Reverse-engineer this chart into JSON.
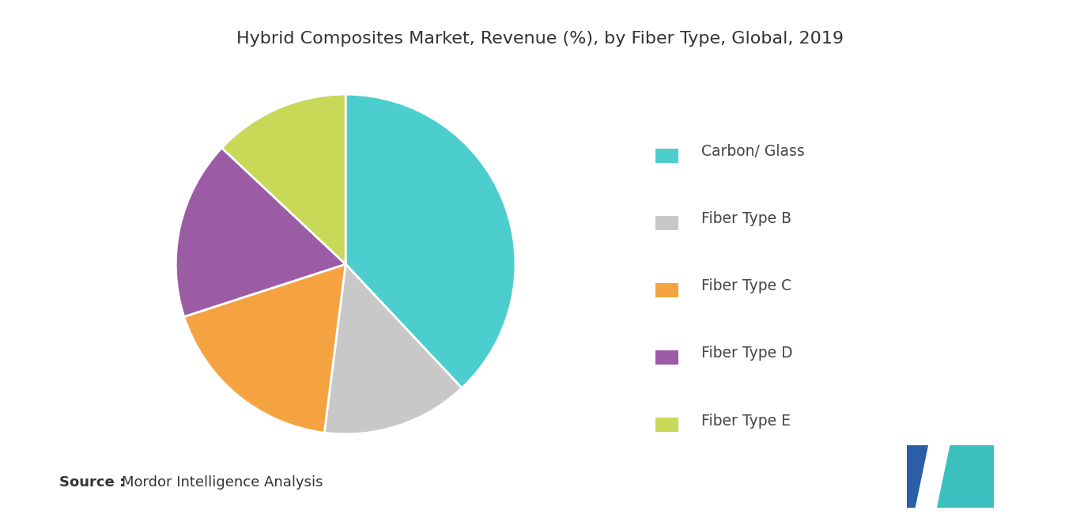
{
  "title": "Hybrid Composites Market, Revenue (%), by Fiber Type, Global, 2019",
  "labels": [
    "Carbon/ Glass",
    "Fiber Type B",
    "Fiber Type C",
    "Fiber Type D",
    "Fiber Type E"
  ],
  "values": [
    38,
    14,
    18,
    17,
    13
  ],
  "colors": [
    "#4DCECE",
    "#C8C8C8",
    "#F5A340",
    "#9B5CA5",
    "#C8D957"
  ],
  "source_bold": "Source :",
  "source_normal": "Mordor Intelligence Analysis",
  "background_color": "#FFFFFF",
  "title_fontsize": 16,
  "legend_fontsize": 13.5,
  "source_fontsize": 13,
  "startangle": 90
}
